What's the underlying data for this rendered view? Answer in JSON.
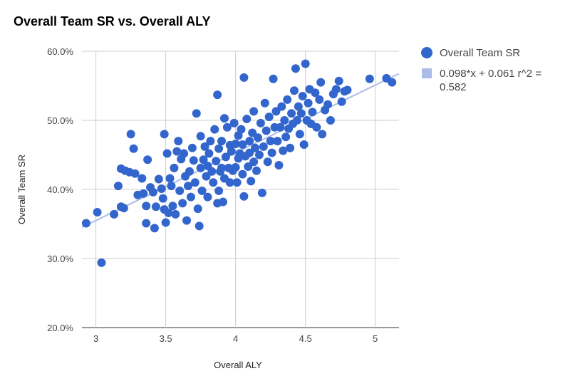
{
  "chart_data": {
    "type": "scatter",
    "title": "Overall Team SR vs. Overall ALY",
    "xlabel": "Overall ALY",
    "ylabel": "Overall Team SR",
    "xlim": [
      2.9,
      5.17
    ],
    "ylim": [
      0.2,
      0.6
    ],
    "x_ticks": [
      {
        "value": 3,
        "label": "3"
      },
      {
        "value": 3.5,
        "label": "3.5"
      },
      {
        "value": 4,
        "label": "4"
      },
      {
        "value": 4.5,
        "label": "4.5"
      },
      {
        "value": 5,
        "label": "5"
      }
    ],
    "y_ticks": [
      {
        "value": 0.2,
        "label": "20.0%"
      },
      {
        "value": 0.3,
        "label": "30.0%"
      },
      {
        "value": 0.4,
        "label": "40.0%"
      },
      {
        "value": 0.5,
        "label": "50.0%"
      },
      {
        "value": 0.6,
        "label": "60.0%"
      }
    ],
    "grid": true,
    "legend_position": "right",
    "series": [
      {
        "name": "Overall Team SR",
        "color": "#3366cc",
        "points": [
          [
            2.93,
            0.351
          ],
          [
            3.01,
            0.367
          ],
          [
            3.04,
            0.294
          ],
          [
            3.13,
            0.364
          ],
          [
            3.16,
            0.405
          ],
          [
            3.18,
            0.375
          ],
          [
            3.2,
            0.373
          ],
          [
            3.18,
            0.43
          ],
          [
            3.21,
            0.427
          ],
          [
            3.24,
            0.425
          ],
          [
            3.25,
            0.48
          ],
          [
            3.27,
            0.459
          ],
          [
            3.28,
            0.423
          ],
          [
            3.3,
            0.392
          ],
          [
            3.33,
            0.416
          ],
          [
            3.34,
            0.394
          ],
          [
            3.36,
            0.376
          ],
          [
            3.36,
            0.351
          ],
          [
            3.37,
            0.443
          ],
          [
            3.39,
            0.403
          ],
          [
            3.41,
            0.396
          ],
          [
            3.42,
            0.344
          ],
          [
            3.43,
            0.375
          ],
          [
            3.45,
            0.415
          ],
          [
            3.47,
            0.401
          ],
          [
            3.48,
            0.387
          ],
          [
            3.49,
            0.371
          ],
          [
            3.49,
            0.48
          ],
          [
            3.5,
            0.352
          ],
          [
            3.51,
            0.452
          ],
          [
            3.52,
            0.366
          ],
          [
            3.53,
            0.416
          ],
          [
            3.54,
            0.405
          ],
          [
            3.55,
            0.376
          ],
          [
            3.56,
            0.431
          ],
          [
            3.57,
            0.364
          ],
          [
            3.58,
            0.455
          ],
          [
            3.59,
            0.47
          ],
          [
            3.6,
            0.398
          ],
          [
            3.61,
            0.444
          ],
          [
            3.62,
            0.38
          ],
          [
            3.63,
            0.452
          ],
          [
            3.64,
            0.419
          ],
          [
            3.65,
            0.355
          ],
          [
            3.66,
            0.405
          ],
          [
            3.67,
            0.426
          ],
          [
            3.68,
            0.389
          ],
          [
            3.69,
            0.46
          ],
          [
            3.7,
            0.442
          ],
          [
            3.71,
            0.41
          ],
          [
            3.72,
            0.51
          ],
          [
            3.73,
            0.372
          ],
          [
            3.74,
            0.347
          ],
          [
            3.75,
            0.477
          ],
          [
            3.75,
            0.431
          ],
          [
            3.76,
            0.398
          ],
          [
            3.77,
            0.443
          ],
          [
            3.78,
            0.462
          ],
          [
            3.79,
            0.419
          ],
          [
            3.8,
            0.434
          ],
          [
            3.8,
            0.389
          ],
          [
            3.81,
            0.452
          ],
          [
            3.82,
            0.47
          ],
          [
            3.83,
            0.426
          ],
          [
            3.84,
            0.41
          ],
          [
            3.85,
            0.487
          ],
          [
            3.86,
            0.441
          ],
          [
            3.87,
            0.537
          ],
          [
            3.87,
            0.38
          ],
          [
            3.88,
            0.398
          ],
          [
            3.88,
            0.459
          ],
          [
            3.89,
            0.426
          ],
          [
            3.9,
            0.431
          ],
          [
            3.9,
            0.47
          ],
          [
            3.91,
            0.382
          ],
          [
            3.92,
            0.416
          ],
          [
            3.92,
            0.503
          ],
          [
            3.93,
            0.447
          ],
          [
            3.94,
            0.49
          ],
          [
            3.95,
            0.431
          ],
          [
            3.96,
            0.464
          ],
          [
            3.96,
            0.41
          ],
          [
            3.97,
            0.455
          ],
          [
            3.98,
            0.427
          ],
          [
            3.99,
            0.496
          ],
          [
            4.0,
            0.432
          ],
          [
            4.0,
            0.466
          ],
          [
            4.01,
            0.41
          ],
          [
            4.02,
            0.478
          ],
          [
            4.02,
            0.445
          ],
          [
            4.03,
            0.452
          ],
          [
            4.04,
            0.487
          ],
          [
            4.05,
            0.422
          ],
          [
            4.05,
            0.465
          ],
          [
            4.06,
            0.562
          ],
          [
            4.06,
            0.39
          ],
          [
            4.07,
            0.448
          ],
          [
            4.08,
            0.502
          ],
          [
            4.09,
            0.433
          ],
          [
            4.1,
            0.47
          ],
          [
            4.1,
            0.453
          ],
          [
            4.11,
            0.412
          ],
          [
            4.12,
            0.482
          ],
          [
            4.13,
            0.44
          ],
          [
            4.13,
            0.513
          ],
          [
            4.14,
            0.46
          ],
          [
            4.15,
            0.427
          ],
          [
            4.16,
            0.475
          ],
          [
            4.17,
            0.45
          ],
          [
            4.18,
            0.496
          ],
          [
            4.19,
            0.395
          ],
          [
            4.2,
            0.462
          ],
          [
            4.21,
            0.525
          ],
          [
            4.22,
            0.485
          ],
          [
            4.23,
            0.44
          ],
          [
            4.24,
            0.505
          ],
          [
            4.25,
            0.47
          ],
          [
            4.26,
            0.453
          ],
          [
            4.27,
            0.56
          ],
          [
            4.28,
            0.49
          ],
          [
            4.29,
            0.513
          ],
          [
            4.3,
            0.47
          ],
          [
            4.31,
            0.435
          ],
          [
            4.32,
            0.49
          ],
          [
            4.33,
            0.52
          ],
          [
            4.34,
            0.456
          ],
          [
            4.35,
            0.5
          ],
          [
            4.36,
            0.476
          ],
          [
            4.37,
            0.53
          ],
          [
            4.38,
            0.488
          ],
          [
            4.39,
            0.46
          ],
          [
            4.4,
            0.51
          ],
          [
            4.41,
            0.495
          ],
          [
            4.42,
            0.543
          ],
          [
            4.43,
            0.575
          ],
          [
            4.44,
            0.5
          ],
          [
            4.45,
            0.52
          ],
          [
            4.46,
            0.48
          ],
          [
            4.47,
            0.51
          ],
          [
            4.48,
            0.535
          ],
          [
            4.49,
            0.465
          ],
          [
            4.5,
            0.582
          ],
          [
            4.51,
            0.5
          ],
          [
            4.52,
            0.525
          ],
          [
            4.53,
            0.545
          ],
          [
            4.54,
            0.495
          ],
          [
            4.55,
            0.512
          ],
          [
            4.57,
            0.54
          ],
          [
            4.58,
            0.49
          ],
          [
            4.6,
            0.53
          ],
          [
            4.61,
            0.555
          ],
          [
            4.62,
            0.48
          ],
          [
            4.64,
            0.515
          ],
          [
            4.66,
            0.523
          ],
          [
            4.68,
            0.5
          ],
          [
            4.7,
            0.538
          ],
          [
            4.72,
            0.545
          ],
          [
            4.74,
            0.557
          ],
          [
            4.76,
            0.527
          ],
          [
            4.78,
            0.542
          ],
          [
            4.8,
            0.544
          ],
          [
            4.96,
            0.56
          ],
          [
            5.08,
            0.561
          ],
          [
            5.12,
            0.555
          ]
        ]
      },
      {
        "name": "0.098*x + 0.061 r^2 = 0.582",
        "name_lines": [
          "0.098*x + 0.061 r^2 =",
          "0.582"
        ],
        "type": "trendline",
        "slope": 0.098,
        "intercept": 0.061,
        "r2": 0.582,
        "color": "#aabde8"
      }
    ]
  }
}
